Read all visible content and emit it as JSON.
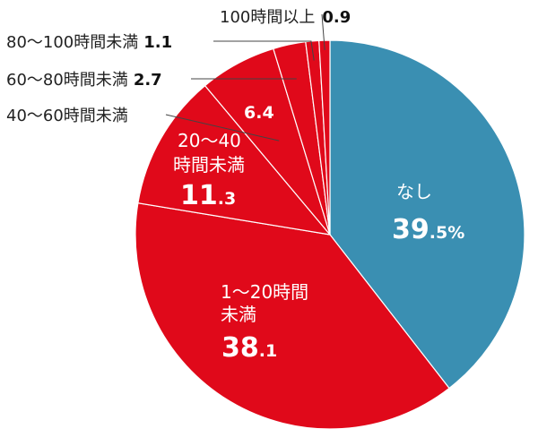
{
  "chart_data": {
    "type": "pie",
    "colors": {
      "none": "#3a8fb2",
      "rest": "#e0091a",
      "stroke": "#ffffff",
      "leader": "#444444"
    },
    "slices": [
      {
        "key": "none",
        "name": "なし",
        "value": 39.5,
        "int": "39",
        "dec": ".5%"
      },
      {
        "key": "h1_20",
        "name": "1〜20時間",
        "name2": "未満",
        "value": 38.1,
        "int": "38",
        "dec": ".1"
      },
      {
        "key": "h20_40",
        "name": "20〜40",
        "name2": "時間未満",
        "value": 11.3,
        "int": "11",
        "dec": ".3"
      },
      {
        "key": "h40_60",
        "name": "40〜60時間未満",
        "value": 6.4
      },
      {
        "key": "h60_80",
        "name": "60〜80時間未満",
        "value": 2.7
      },
      {
        "key": "h80_100",
        "name": "80〜100時間未満",
        "value": 1.1
      },
      {
        "key": "h100",
        "name": "100時間以上",
        "value": 0.9
      }
    ],
    "labels": {
      "none_name": "なし",
      "none_int": "39",
      "none_dec": ".5%",
      "h1_20_line1": "1〜20時間",
      "h1_20_line2": "未満",
      "h1_20_int": "38",
      "h1_20_dec": ".1",
      "h20_40_line1": "20〜40",
      "h20_40_line2": "時間未満",
      "h20_40_int": "11",
      "h20_40_dec": ".3",
      "h40_60_value": "6.4",
      "h40_60_name": "40〜60時間未満",
      "h60_80_name": "60〜80時間未満",
      "h60_80_value": "2.7",
      "h80_100_name": "80〜100時間未満",
      "h80_100_value": "1.1",
      "h100_name": "100時間以上",
      "h100_value": "0.9"
    }
  }
}
